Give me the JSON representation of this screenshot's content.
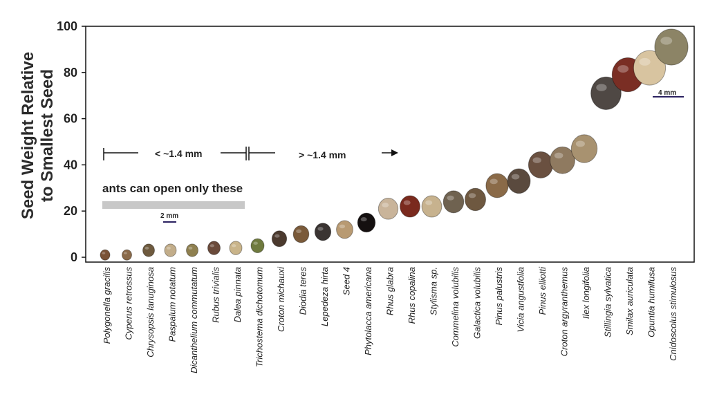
{
  "chart_data": {
    "type": "scatter",
    "ylabel": [
      "Seed Weight Relative",
      "to Smallest Seed"
    ],
    "xlabel": "",
    "ylim": [
      0,
      100
    ],
    "yticks": [
      0,
      20,
      40,
      60,
      80,
      100
    ],
    "grid": false,
    "categories": [
      "Polygonella gracilis",
      "Cyperus retrossus",
      "Chrysopsis lanuginosa",
      "Paspalum notatum",
      "Dicanthelium commutatum",
      "Rubus trivialis",
      "Dalea pinnata",
      "Trichostema dichotomum",
      "Croton michauxi",
      "Diodia teres",
      "Lepedeza hirta",
      "Seed 4",
      "Phytolacca americana",
      "Rhus glabra",
      "Rhus copalina",
      "Stylisma sp.",
      "Commelina volubilis",
      "Galactica volubilis",
      "Pinus palustris",
      "Vicia angustfolia",
      "Pinus elliotti",
      "Croton argyranthemus",
      "Ilex longifolia",
      "Stillingia sylvatica",
      "Smilax auriculata",
      "Opuntia humifusa",
      "Cnidoscolus stimulosus"
    ],
    "values": [
      1,
      1,
      3,
      3,
      3,
      4,
      4,
      5,
      8,
      10,
      11,
      12,
      15,
      21,
      22,
      22,
      24,
      25,
      31,
      33,
      40,
      42,
      47,
      71,
      79,
      82,
      91
    ],
    "seed_colors": [
      "#7a5236",
      "#8a6a4a",
      "#6e5a3e",
      "#c2ad8a",
      "#8f8050",
      "#6a4a3a",
      "#c9b48a",
      "#6f7a3e",
      "#4b3a2e",
      "#7a5a3a",
      "#3a3432",
      "#b89a72",
      "#151010",
      "#c9b49a",
      "#7a2a1e",
      "#c7b28e",
      "#6f6250",
      "#6e5840",
      "#8a6a48",
      "#5a4a3e",
      "#6a5040",
      "#8f7a60",
      "#a89270",
      "#4f4844",
      "#7a2e24",
      "#d8c4a0",
      "#8c8466"
    ],
    "annotations": {
      "left_range": "< ~1.4 mm",
      "right_range": "> ~1.4 mm",
      "ants_note": "ants can open only these",
      "scale_small": "2 mm",
      "scale_large": "4 mm"
    }
  }
}
